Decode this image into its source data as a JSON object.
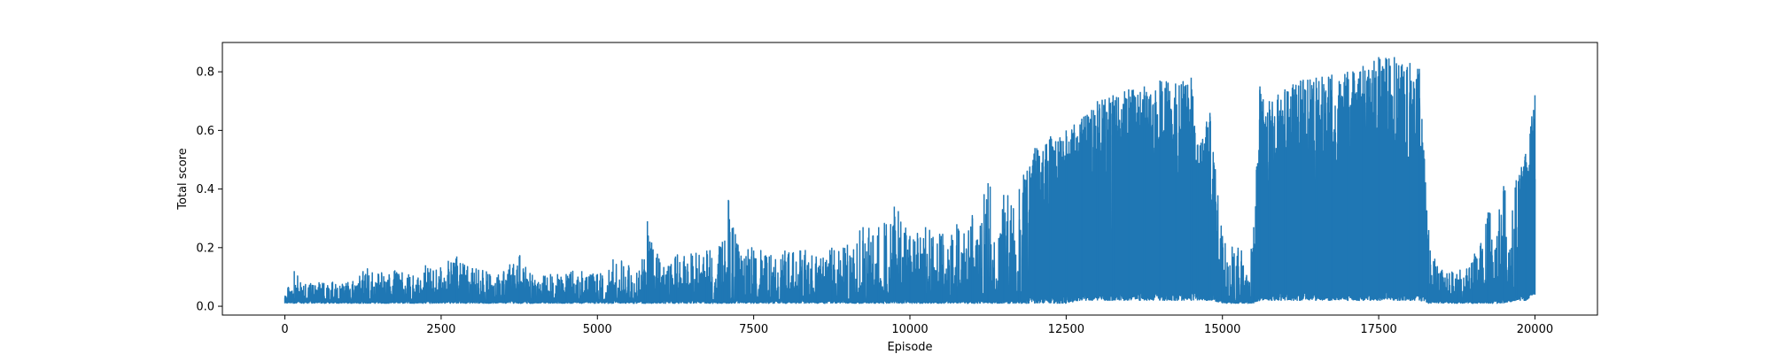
{
  "chart_data": {
    "type": "line",
    "title": "",
    "xlabel": "Episode",
    "ylabel": "Total score",
    "xlim": [
      -1000,
      21000
    ],
    "ylim": [
      -0.03,
      0.9
    ],
    "xticks": [
      0,
      2500,
      5000,
      7500,
      10000,
      12500,
      15000,
      17500,
      20000
    ],
    "xtick_labels": [
      "0",
      "2500",
      "5000",
      "7500",
      "10000",
      "12500",
      "15000",
      "17500",
      "20000"
    ],
    "yticks": [
      0.0,
      0.2,
      0.4,
      0.6,
      0.8
    ],
    "ytick_labels": [
      "0.0",
      "0.2",
      "0.4",
      "0.6",
      "0.8"
    ],
    "grid": false,
    "legend": "none",
    "line_color": "#1f77b4",
    "series": [
      {
        "x": [
          0,
          150,
          300,
          600,
          1000,
          1250,
          1500,
          1750,
          2000,
          2250,
          2500,
          2750,
          3000,
          3250,
          3500,
          3750,
          4000,
          4250,
          4500,
          4750,
          5000,
          5250,
          5500,
          5750,
          5800,
          6000,
          6250,
          6500,
          6750,
          7000,
          7100,
          7250,
          7500,
          7750,
          8000,
          8250,
          8500,
          8750,
          9000,
          9250,
          9500,
          9750,
          10000,
          10250,
          10500,
          10750,
          11000,
          11250,
          11500,
          11750,
          12000,
          12250,
          12500,
          12750,
          13000,
          13250,
          13500,
          13750,
          14000,
          14250,
          14500,
          14600,
          14800,
          15000,
          15250,
          15500,
          15600,
          15750,
          16000,
          16250,
          16500,
          16750,
          17000,
          17250,
          17500,
          17750,
          18000,
          18150,
          18300,
          18500,
          18750,
          19000,
          19250,
          19500,
          19700,
          19850,
          20000
        ],
        "peak": [
          0.03,
          0.12,
          0.07,
          0.08,
          0.07,
          0.12,
          0.11,
          0.12,
          0.1,
          0.14,
          0.12,
          0.17,
          0.13,
          0.11,
          0.12,
          0.17,
          0.09,
          0.11,
          0.11,
          0.12,
          0.11,
          0.16,
          0.14,
          0.16,
          0.29,
          0.15,
          0.17,
          0.18,
          0.19,
          0.22,
          0.36,
          0.21,
          0.19,
          0.17,
          0.19,
          0.19,
          0.17,
          0.2,
          0.21,
          0.27,
          0.27,
          0.34,
          0.24,
          0.27,
          0.24,
          0.28,
          0.3,
          0.42,
          0.38,
          0.4,
          0.54,
          0.58,
          0.6,
          0.64,
          0.7,
          0.72,
          0.74,
          0.75,
          0.77,
          0.76,
          0.78,
          0.55,
          0.66,
          0.24,
          0.2,
          0.27,
          0.75,
          0.7,
          0.74,
          0.77,
          0.78,
          0.79,
          0.8,
          0.82,
          0.85,
          0.85,
          0.83,
          0.81,
          0.26,
          0.12,
          0.11,
          0.15,
          0.32,
          0.41,
          0.43,
          0.52,
          0.72
        ],
        "base": [
          0.01,
          0.01,
          0.01,
          0.01,
          0.01,
          0.01,
          0.01,
          0.01,
          0.01,
          0.01,
          0.01,
          0.01,
          0.01,
          0.01,
          0.01,
          0.01,
          0.01,
          0.01,
          0.01,
          0.01,
          0.01,
          0.01,
          0.01,
          0.01,
          0.01,
          0.01,
          0.01,
          0.01,
          0.01,
          0.01,
          0.01,
          0.01,
          0.01,
          0.01,
          0.01,
          0.01,
          0.01,
          0.01,
          0.01,
          0.01,
          0.01,
          0.01,
          0.01,
          0.01,
          0.01,
          0.01,
          0.01,
          0.01,
          0.01,
          0.01,
          0.01,
          0.01,
          0.01,
          0.02,
          0.02,
          0.02,
          0.02,
          0.02,
          0.02,
          0.02,
          0.02,
          0.02,
          0.02,
          0.01,
          0.01,
          0.01,
          0.02,
          0.02,
          0.02,
          0.02,
          0.02,
          0.02,
          0.02,
          0.02,
          0.02,
          0.02,
          0.02,
          0.02,
          0.01,
          0.01,
          0.01,
          0.01,
          0.01,
          0.01,
          0.02,
          0.02,
          0.04
        ]
      }
    ]
  }
}
